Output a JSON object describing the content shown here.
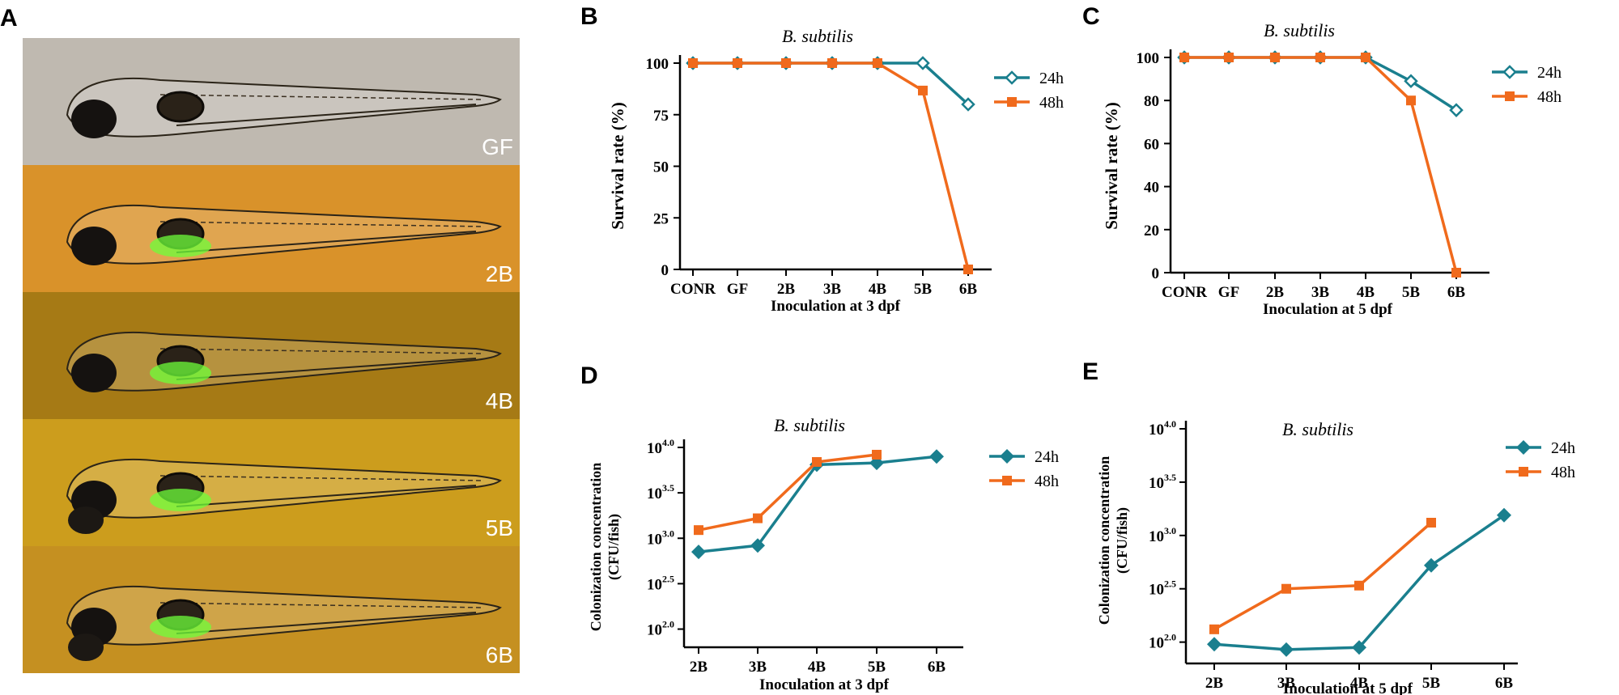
{
  "panels": {
    "a": {
      "letter": "A"
    },
    "b": {
      "letter": "B"
    },
    "c": {
      "letter": "C"
    },
    "d": {
      "letter": "D"
    },
    "e": {
      "letter": "E"
    }
  },
  "images": [
    {
      "label": "GF",
      "bg": "#bfb9b0"
    },
    {
      "label": "2B",
      "bg": "#d9922a"
    },
    {
      "label": "4B",
      "bg": "#a67a15"
    },
    {
      "label": "5B",
      "bg": "#cc9d1d"
    },
    {
      "label": "6B",
      "bg": "#c59021"
    }
  ],
  "colors": {
    "s24": "#1a7f8e",
    "s48": "#f06a1c"
  },
  "chart_data": [
    {
      "id": "B",
      "type": "line",
      "title": "B. subtilis",
      "xlabel": "Inoculation at 3 dpf",
      "ylabel": "Survival rate (%)",
      "categories": [
        "CONR",
        "GF",
        "2B",
        "3B",
        "4B",
        "5B",
        "6B"
      ],
      "yticks": [
        "0",
        "25",
        "50",
        "75",
        "100"
      ],
      "ylim": [
        0,
        100
      ],
      "series": [
        {
          "name": "24h",
          "marker": "diamond-open",
          "values": [
            100,
            100,
            100,
            100,
            100,
            100,
            80
          ]
        },
        {
          "name": "48h",
          "marker": "square",
          "values": [
            100,
            100,
            100,
            100,
            100,
            86.7,
            0
          ]
        }
      ]
    },
    {
      "id": "C",
      "type": "line",
      "title": "B. subtilis",
      "xlabel": "Inoculation at 5 dpf",
      "ylabel": "Survival rate (%)",
      "categories": [
        "CONR",
        "GF",
        "2B",
        "3B",
        "4B",
        "5B",
        "6B"
      ],
      "yticks": [
        "0",
        "20",
        "40",
        "60",
        "80",
        "100"
      ],
      "ylim": [
        0,
        100
      ],
      "series": [
        {
          "name": "24h",
          "marker": "diamond-open",
          "values": [
            100,
            100,
            100,
            100,
            100,
            89,
            75.5
          ]
        },
        {
          "name": "48h",
          "marker": "square",
          "values": [
            100,
            100,
            100,
            100,
            100,
            80,
            0
          ]
        }
      ]
    },
    {
      "id": "D",
      "type": "line",
      "title": "B. subtilis",
      "xlabel": "Inoculation at 3 dpf",
      "ylabel_line1": "Colonization concentration",
      "ylabel_line2": "(CFU/fish)",
      "categories": [
        "2B",
        "3B",
        "4B",
        "5B",
        "6B"
      ],
      "yticks": [
        {
          "base": "10",
          "exp": "2.0"
        },
        {
          "base": "10",
          "exp": "2.5"
        },
        {
          "base": "10",
          "exp": "3.0"
        },
        {
          "base": "10",
          "exp": "3.5"
        },
        {
          "base": "10",
          "exp": "4.0"
        }
      ],
      "ylim": [
        1.8,
        4.0
      ],
      "series": [
        {
          "name": "24h",
          "marker": "diamond",
          "values": [
            2.85,
            2.92,
            3.81,
            3.83,
            3.9
          ]
        },
        {
          "name": "48h",
          "marker": "square",
          "values": [
            3.09,
            3.22,
            3.84,
            3.92,
            null
          ]
        }
      ]
    },
    {
      "id": "E",
      "type": "line",
      "title": "B. subtilis",
      "xlabel": "Inoculation at 5 dpf",
      "ylabel_line1": "Colonization concentration",
      "ylabel_line2": "(CFU/fish)",
      "categories": [
        "2B",
        "3B",
        "4B",
        "5B",
        "6B"
      ],
      "yticks": [
        {
          "base": "10",
          "exp": "2.0"
        },
        {
          "base": "10",
          "exp": "2.5"
        },
        {
          "base": "10",
          "exp": "3.0"
        },
        {
          "base": "10",
          "exp": "3.5"
        },
        {
          "base": "10",
          "exp": "4.0"
        }
      ],
      "ylim": [
        1.8,
        4.0
      ],
      "series": [
        {
          "name": "24h",
          "marker": "diamond",
          "values": [
            1.98,
            1.93,
            1.95,
            2.72,
            3.19
          ]
        },
        {
          "name": "48h",
          "marker": "square",
          "values": [
            2.12,
            2.5,
            2.53,
            3.12,
            null
          ]
        }
      ]
    }
  ]
}
